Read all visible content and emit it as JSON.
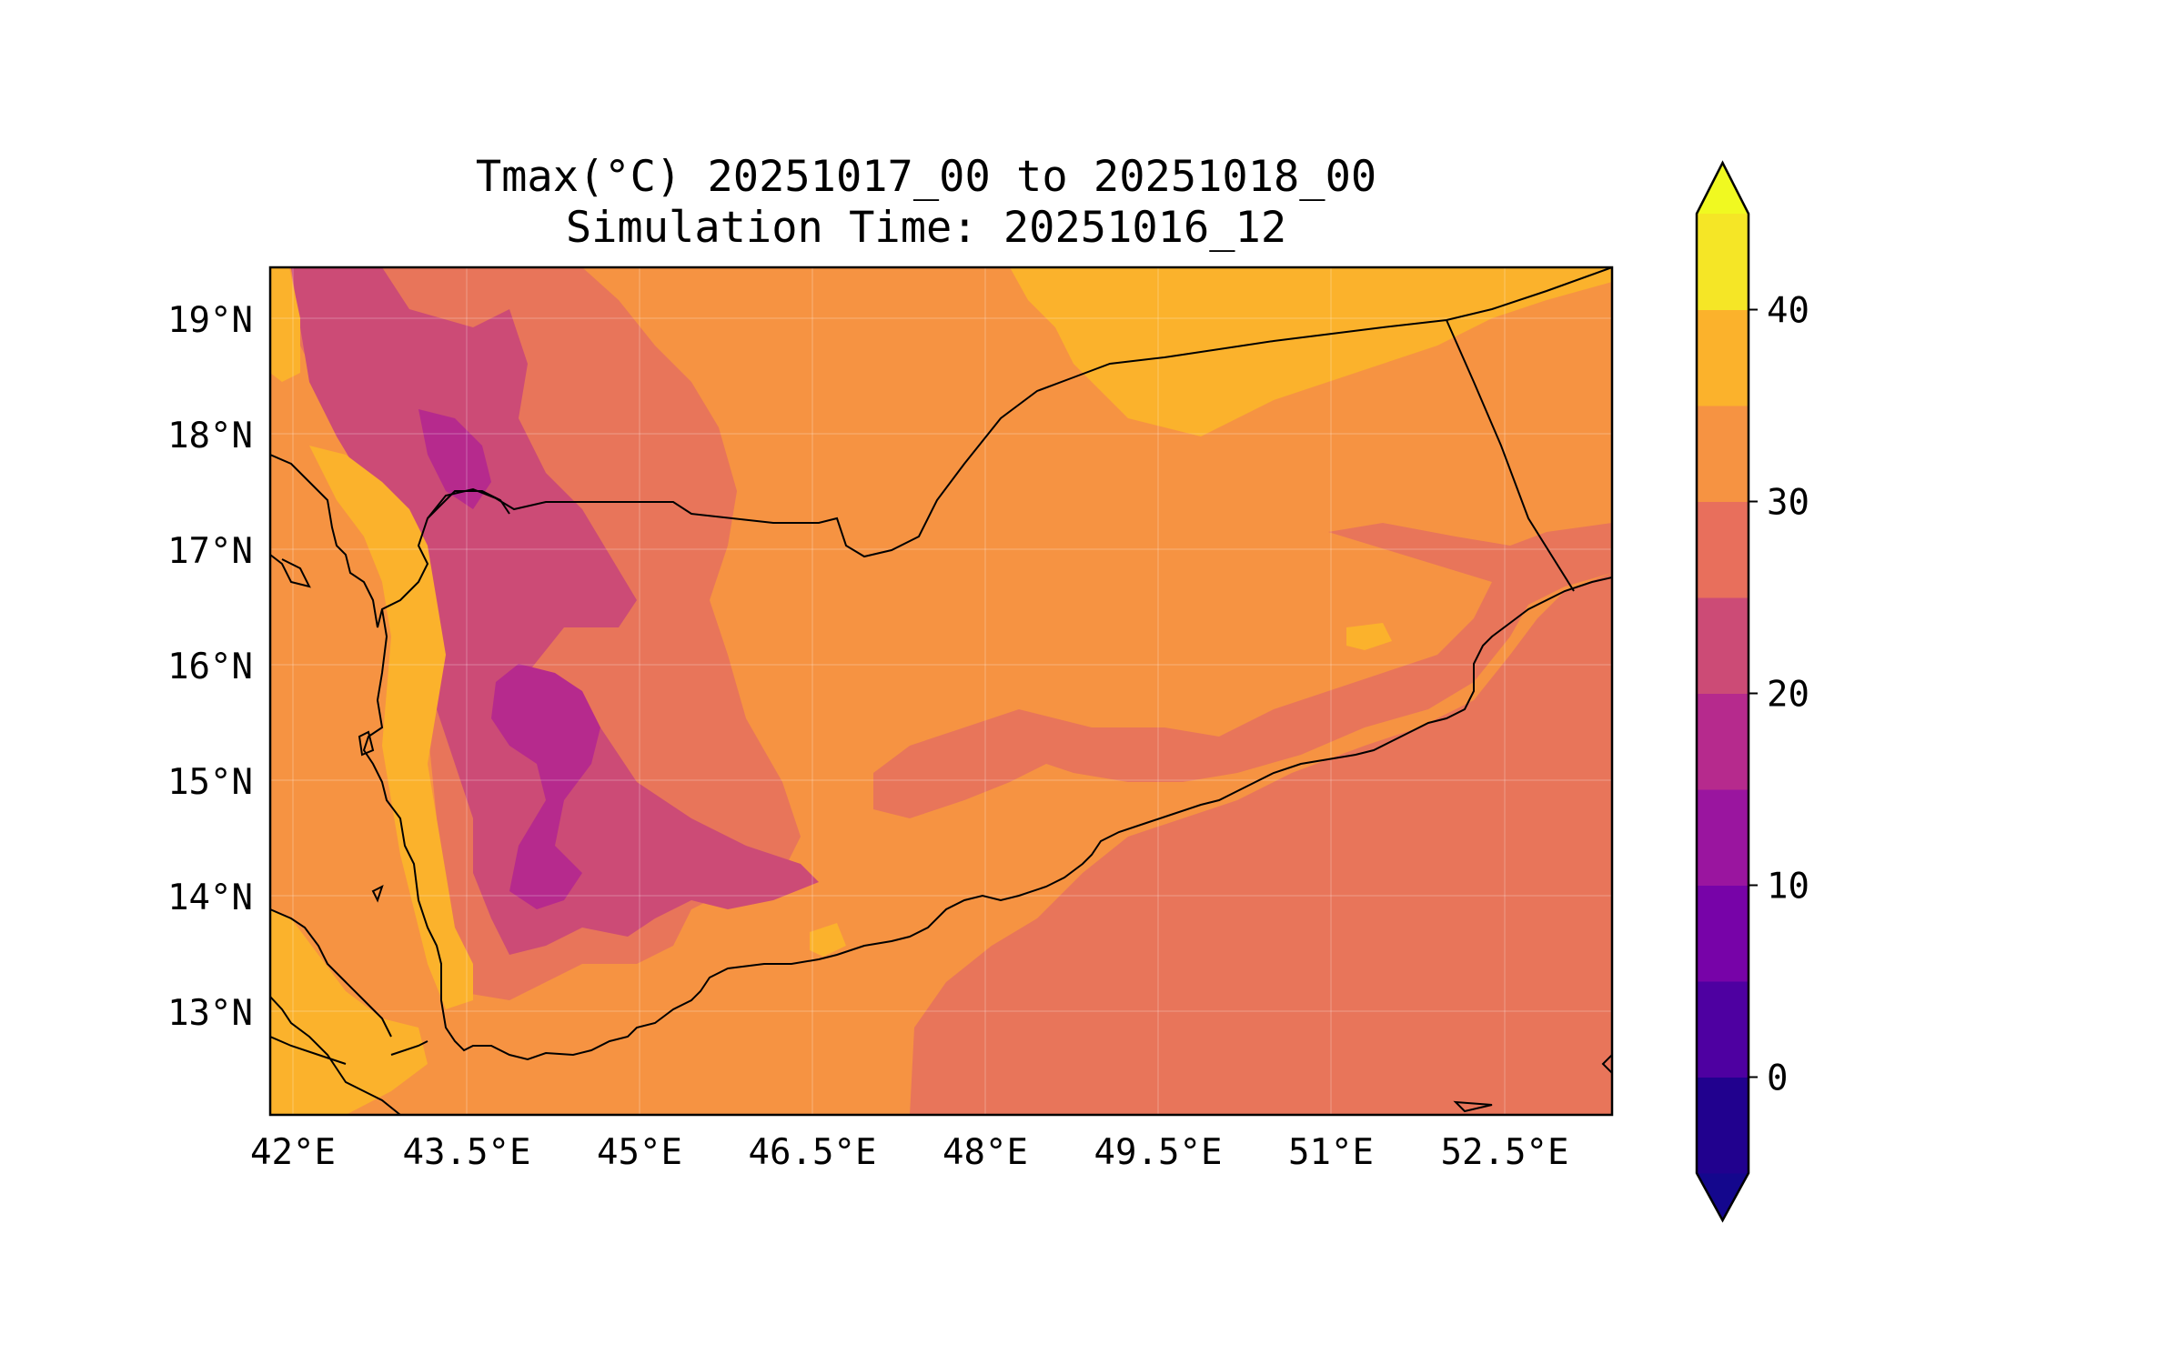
{
  "title": {
    "line1": "Tmax(°C) 20251017_00 to 20251018_00",
    "line2": "Simulation Time: 20251016_12"
  },
  "map": {
    "region": "Yemen",
    "lon_range": [
      41.85,
      53.5
    ],
    "lat_range": [
      12.1,
      19.45
    ],
    "lon_ticks": [
      "42°E",
      "43.5°E",
      "45°E",
      "46.5°E",
      "48°E",
      "49.5°E",
      "51°E",
      "52.5°E"
    ],
    "lat_ticks": [
      "13°N",
      "14°N",
      "15°N",
      "16°N",
      "17°N",
      "18°N",
      "19°N"
    ],
    "gridlines": true,
    "borders": true,
    "coastlines": true
  },
  "colorbar": {
    "levels": [
      -5,
      0,
      5,
      10,
      15,
      20,
      25,
      30,
      35,
      40,
      45
    ],
    "tick_labels": [
      "0",
      "10",
      "20",
      "30",
      "40"
    ],
    "tick_values": [
      0,
      10,
      20,
      30,
      40
    ],
    "extend": "both",
    "colors": [
      "#14078d",
      "#21018e",
      "#4e00a1",
      "#7703a8",
      "#9a159f",
      "#b62a8d",
      "#cc4b76",
      "#e86f5c",
      "#f69342",
      "#fbb22c",
      "#f5e626",
      "#f0f921"
    ],
    "colormap": "plasma"
  },
  "chart_data": {
    "type": "heatmap",
    "title": "Tmax(°C) 20251017_00 to 20251018_00",
    "subtitle": "Simulation Time: 20251016_12",
    "xlim": [
      41.85,
      53.5
    ],
    "ylim": [
      12.1,
      19.45
    ],
    "value_range": [
      -5,
      45
    ],
    "dominant_bands": [
      "25-30",
      "30-35"
    ],
    "highlands_band": [
      "15-20",
      "20-25"
    ],
    "red_sea_coast_band": "35-40"
  }
}
